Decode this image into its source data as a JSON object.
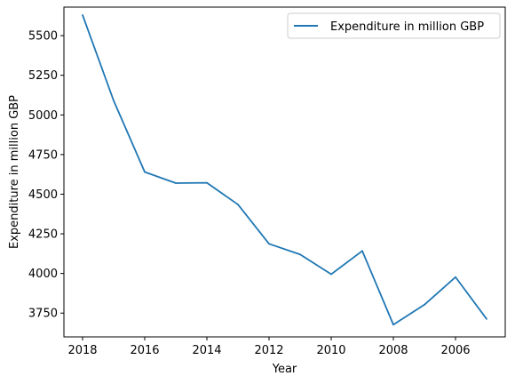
{
  "chart_data": {
    "type": "line",
    "title": "",
    "xlabel": "Year",
    "ylabel": "Expenditure in million GBP",
    "x_reversed": true,
    "xlim": [
      2018.6,
      2004.4
    ],
    "ylim": [
      3600,
      5680
    ],
    "x_ticks": [
      2018,
      2016,
      2014,
      2012,
      2010,
      2008,
      2006
    ],
    "y_ticks": [
      3750,
      4000,
      4250,
      4500,
      4750,
      5000,
      5250,
      5500
    ],
    "grid": false,
    "legend_position": "top-right",
    "series": [
      {
        "name": "Expenditure in million GBP",
        "color": "#1f77b4",
        "x": [
          2018,
          2017,
          2016,
          2015,
          2014,
          2013,
          2012,
          2011,
          2010,
          2009,
          2008,
          2007,
          2006,
          2005
        ],
        "values": [
          5630,
          5090,
          4640,
          4570,
          4572,
          4435,
          4187,
          4120,
          3995,
          4142,
          3677,
          3803,
          3977,
          3713
        ]
      }
    ]
  }
}
